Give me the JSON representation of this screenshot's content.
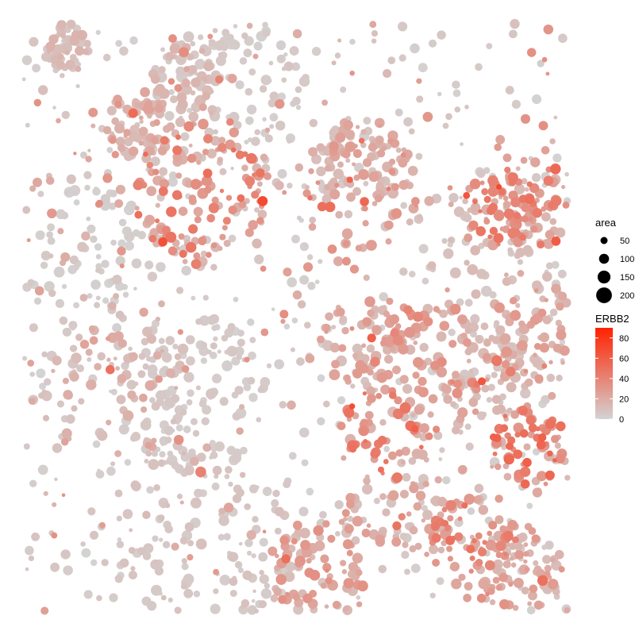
{
  "chart_data": {
    "type": "scatter",
    "title": "",
    "xlabel": "",
    "ylabel": "",
    "xlim": [
      0,
      1000
    ],
    "ylim": [
      0,
      1000
    ],
    "axes_visible": false,
    "grid": false,
    "legend_position": "right",
    "size_legend": {
      "title": "area",
      "entries": [
        {
          "label": "50",
          "value": 50
        },
        {
          "label": "100",
          "value": 100
        },
        {
          "label": "150",
          "value": 150
        },
        {
          "label": "200",
          "value": 200
        }
      ]
    },
    "color_legend": {
      "title": "ERBB2",
      "min": 0,
      "max": 90,
      "low_color": "#d3d3d3",
      "high_color": "#ff2200",
      "ticks": [
        {
          "label": "80",
          "value": 80
        },
        {
          "label": "60",
          "value": 60
        },
        {
          "label": "40",
          "value": 40
        },
        {
          "label": "20",
          "value": 20
        },
        {
          "label": "0",
          "value": 0
        }
      ]
    },
    "clusters": [
      {
        "x": 80,
        "y": 40,
        "radius": 40,
        "expression": 10,
        "points": 50
      },
      {
        "x": 210,
        "y": 175,
        "radius": 60,
        "expression": 15,
        "points": 70
      },
      {
        "x": 325,
        "y": 290,
        "radius": 120,
        "expression": 30,
        "points": 120
      },
      {
        "x": 300,
        "y": 100,
        "radius": 70,
        "expression": 10,
        "points": 70
      },
      {
        "x": 620,
        "y": 275,
        "radius": 110,
        "expression": 20,
        "points": 70
      },
      {
        "x": 330,
        "y": 880,
        "radius": 160,
        "expression": 6,
        "points": 120
      },
      {
        "x": 620,
        "y": 550,
        "radius": 80,
        "expression": 18,
        "points": 70
      },
      {
        "x": 740,
        "y": 590,
        "radius": 120,
        "expression": 24,
        "points": 90
      },
      {
        "x": 550,
        "y": 930,
        "radius": 90,
        "expression": 20,
        "points": 80
      },
      {
        "x": 660,
        "y": 700,
        "radius": 80,
        "expression": 30,
        "points": 60
      },
      {
        "x": 830,
        "y": 890,
        "radius": 90,
        "expression": 30,
        "points": 80
      },
      {
        "x": 930,
        "y": 720,
        "radius": 70,
        "expression": 35,
        "points": 70
      },
      {
        "x": 940,
        "y": 530,
        "radius": 90,
        "expression": 18,
        "points": 80
      },
      {
        "x": 910,
        "y": 930,
        "radius": 80,
        "expression": 18,
        "points": 70
      },
      {
        "x": 860,
        "y": 600,
        "radius": 70,
        "expression": 10,
        "points": 60
      },
      {
        "x": 880,
        "y": 310,
        "radius": 70,
        "expression": 30,
        "points": 60
      },
      {
        "x": 620,
        "y": 240,
        "radius": 80,
        "expression": 15,
        "points": 60
      },
      {
        "x": 940,
        "y": 300,
        "radius": 80,
        "expression": 28,
        "points": 60
      },
      {
        "x": 400,
        "y": 90,
        "radius": 120,
        "expression": 4,
        "points": 90
      },
      {
        "x": 130,
        "y": 380,
        "radius": 110,
        "expression": 2,
        "points": 60
      },
      {
        "x": 310,
        "y": 630,
        "radius": 140,
        "expression": 4,
        "points": 110
      },
      {
        "x": 690,
        "y": 810,
        "radius": 90,
        "expression": 16,
        "points": 60
      },
      {
        "x": 850,
        "y": 410,
        "radius": 120,
        "expression": 8,
        "points": 60
      },
      {
        "x": 170,
        "y": 620,
        "radius": 140,
        "expression": 12,
        "points": 80
      }
    ]
  }
}
